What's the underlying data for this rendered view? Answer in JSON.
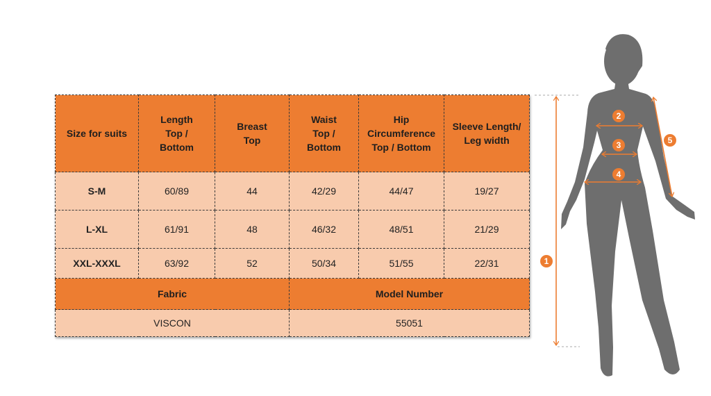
{
  "table": {
    "headers": [
      "Size for suits",
      "Length\nTop /\nBottom",
      "Breast\nTop",
      "Waist\nTop /\nBottom",
      "Hip\nCircumference\nTop / Bottom",
      "Sleeve Length/\nLeg width"
    ],
    "rows": [
      [
        "S-M",
        "60/89",
        "44",
        "42/29",
        "44/47",
        "19/27"
      ],
      [
        "L-XL",
        "61/91",
        "48",
        "46/32",
        "48/51",
        "21/29"
      ],
      [
        "XXL-XXXL",
        "63/92",
        "52",
        "50/34",
        "51/55",
        "22/31"
      ]
    ],
    "fabric_label": "Fabric",
    "model_label": "Model Number",
    "fabric_value": "VISCON",
    "model_value": "55051"
  },
  "figure": {
    "markers": [
      "1",
      "2",
      "3",
      "4",
      "5"
    ],
    "accent_color": "#ED7D31",
    "silhouette_color": "#6E6E6E"
  },
  "colors": {
    "header": "#ED7D31",
    "cell": "#F8CBAD"
  }
}
